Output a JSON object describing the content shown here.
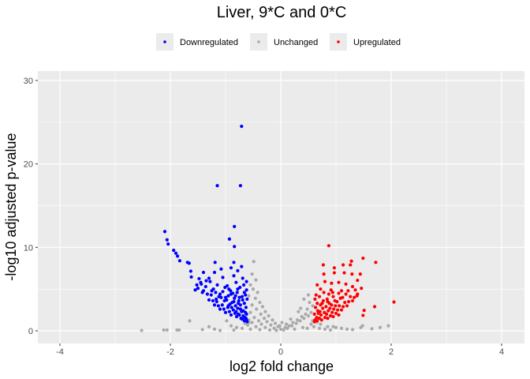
{
  "chart_data": {
    "type": "scatter",
    "title": "Liver, 9*C and 0*C",
    "xlabel": "log2 fold change",
    "ylabel": "-log10 adjusted p-value",
    "xlim": [
      -4.4,
      4.4
    ],
    "ylim": [
      -1.5,
      31
    ],
    "xticks": [
      -4,
      -2,
      0,
      2,
      4
    ],
    "yticks": [
      0,
      10,
      20,
      30
    ],
    "grid": true,
    "legend": {
      "placement": "top",
      "entries": [
        "Downregulated",
        "Unchanged",
        "Upregulated"
      ]
    },
    "series": [
      {
        "name": "Downregulated",
        "color": "#0000FF",
        "points": [
          [
            -0.71,
            24.5
          ],
          [
            -1.15,
            17.4
          ],
          [
            -0.73,
            17.4
          ],
          [
            -0.84,
            12.5
          ],
          [
            -2.1,
            11.9
          ],
          [
            -2.06,
            10.9
          ],
          [
            -2.04,
            10.4
          ],
          [
            -0.93,
            11.0
          ],
          [
            -0.84,
            10.1
          ],
          [
            -1.94,
            9.65
          ],
          [
            -1.9,
            9.3
          ],
          [
            -1.87,
            8.95
          ],
          [
            -1.83,
            8.4
          ],
          [
            -1.69,
            8.2
          ],
          [
            -1.66,
            8.1
          ],
          [
            -1.63,
            7.15
          ],
          [
            -1.62,
            6.45
          ],
          [
            -1.19,
            8.2
          ],
          [
            -0.85,
            8.2
          ],
          [
            -1.4,
            7.0
          ],
          [
            -1.48,
            6.25
          ],
          [
            -0.9,
            7.55
          ],
          [
            -0.71,
            7.7
          ],
          [
            -1.08,
            7.4
          ],
          [
            -0.78,
            7.2
          ],
          [
            -1.2,
            7.0
          ],
          [
            -1.3,
            6.3
          ],
          [
            -1.45,
            5.8
          ],
          [
            -1.52,
            5.5
          ],
          [
            -1.5,
            5.1
          ],
          [
            -1.42,
            4.6
          ],
          [
            -1.55,
            4.9
          ],
          [
            -0.62,
            1.3
          ],
          [
            -0.65,
            1.6
          ],
          [
            -0.62,
            2.0
          ],
          [
            -0.68,
            2.4
          ],
          [
            -0.63,
            2.8
          ],
          [
            -0.66,
            3.3
          ],
          [
            -0.61,
            3.8
          ],
          [
            -0.64,
            4.3
          ],
          [
            -0.62,
            4.9
          ],
          [
            -0.67,
            5.5
          ],
          [
            -0.72,
            1.5
          ],
          [
            -0.75,
            1.9
          ],
          [
            -0.71,
            2.3
          ],
          [
            -0.78,
            2.7
          ],
          [
            -0.73,
            3.1
          ],
          [
            -0.76,
            3.6
          ],
          [
            -0.7,
            4.1
          ],
          [
            -0.79,
            4.6
          ],
          [
            -0.74,
            5.2
          ],
          [
            -0.8,
            1.7
          ],
          [
            -0.83,
            2.1
          ],
          [
            -0.86,
            2.5
          ],
          [
            -0.82,
            3.0
          ],
          [
            -0.88,
            3.4
          ],
          [
            -0.84,
            3.9
          ],
          [
            -0.87,
            4.5
          ],
          [
            -0.81,
            5.8
          ],
          [
            -0.9,
            1.9
          ],
          [
            -0.93,
            2.3
          ],
          [
            -0.96,
            2.8
          ],
          [
            -0.92,
            3.2
          ],
          [
            -0.98,
            3.7
          ],
          [
            -0.95,
            4.2
          ],
          [
            -0.91,
            4.8
          ],
          [
            -0.97,
            5.4
          ],
          [
            -1.0,
            2.2
          ],
          [
            -1.03,
            2.6
          ],
          [
            -1.06,
            3.1
          ],
          [
            -1.02,
            3.6
          ],
          [
            -1.08,
            4.0
          ],
          [
            -1.05,
            4.7
          ],
          [
            -1.01,
            5.2
          ],
          [
            -1.1,
            2.6
          ],
          [
            -1.13,
            3.0
          ],
          [
            -1.16,
            3.5
          ],
          [
            -1.12,
            4.1
          ],
          [
            -1.18,
            4.6
          ],
          [
            -1.15,
            5.5
          ],
          [
            -1.2,
            3.1
          ],
          [
            -1.23,
            3.6
          ],
          [
            -1.26,
            4.3
          ],
          [
            -1.22,
            5.0
          ],
          [
            -1.28,
            5.9
          ],
          [
            -1.3,
            3.7
          ],
          [
            -1.33,
            4.4
          ],
          [
            -1.36,
            5.3
          ],
          [
            -1.4,
            4.8
          ],
          [
            -1.44,
            5.6
          ],
          [
            -1.35,
            6.0
          ],
          [
            -0.69,
            6.3
          ],
          [
            -0.85,
            6.6
          ],
          [
            -1.05,
            6.4
          ],
          [
            -0.61,
            1.1
          ],
          [
            -0.66,
            1.2
          ],
          [
            -0.7,
            1.4
          ],
          [
            -0.63,
            1.5
          ],
          [
            -0.68,
            1.8
          ],
          [
            -0.77,
            2.0
          ],
          [
            -0.64,
            2.2
          ],
          [
            -0.73,
            2.6
          ],
          [
            -0.81,
            2.3
          ],
          [
            -0.89,
            2.8
          ],
          [
            -0.95,
            3.0
          ],
          [
            -0.85,
            3.5
          ],
          [
            -0.77,
            3.3
          ],
          [
            -0.69,
            3.7
          ],
          [
            -0.75,
            4.0
          ],
          [
            -0.82,
            4.2
          ],
          [
            -0.66,
            4.6
          ],
          [
            -0.9,
            4.4
          ],
          [
            -1.0,
            4.0
          ],
          [
            -1.1,
            4.4
          ],
          [
            -0.94,
            5.0
          ],
          [
            -0.78,
            5.0
          ],
          [
            -0.62,
            5.9
          ],
          [
            -1.25,
            4.8
          ],
          [
            -1.17,
            3.8
          ]
        ]
      },
      {
        "name": "Unchanged",
        "color": "#A9A9A9",
        "points": [
          [
            -2.52,
            0.05
          ],
          [
            -2.12,
            0.1
          ],
          [
            -2.06,
            0.1
          ],
          [
            -1.88,
            0.1
          ],
          [
            -1.84,
            0.1
          ],
          [
            -1.65,
            1.2
          ],
          [
            -1.42,
            0.15
          ],
          [
            -1.3,
            0.5
          ],
          [
            -1.2,
            0.2
          ],
          [
            -1.1,
            0.05
          ],
          [
            -0.98,
            1.2
          ],
          [
            -0.9,
            0.6
          ],
          [
            -0.85,
            0.1
          ],
          [
            -0.8,
            0.4
          ],
          [
            -0.49,
            8.3
          ],
          [
            -0.52,
            6.8
          ],
          [
            -0.45,
            6.1
          ],
          [
            -0.55,
            5.5
          ],
          [
            -0.5,
            5.0
          ],
          [
            -0.42,
            4.6
          ],
          [
            -0.58,
            4.2
          ],
          [
            -0.46,
            3.9
          ],
          [
            -0.38,
            3.4
          ],
          [
            -0.52,
            3.1
          ],
          [
            -0.33,
            2.9
          ],
          [
            -0.44,
            2.6
          ],
          [
            -0.28,
            2.3
          ],
          [
            -0.55,
            2.2
          ],
          [
            -0.36,
            2.0
          ],
          [
            -0.22,
            1.8
          ],
          [
            -0.48,
            1.6
          ],
          [
            -0.3,
            1.5
          ],
          [
            -0.15,
            1.3
          ],
          [
            -0.58,
            1.3
          ],
          [
            -0.4,
            1.2
          ],
          [
            -0.25,
            1.1
          ],
          [
            -0.1,
            0.9
          ],
          [
            -0.52,
            1.0
          ],
          [
            -0.35,
            0.8
          ],
          [
            -0.18,
            0.7
          ],
          [
            -0.05,
            0.5
          ],
          [
            -0.6,
            0.7
          ],
          [
            -0.45,
            0.5
          ],
          [
            -0.28,
            0.4
          ],
          [
            -0.12,
            0.3
          ],
          [
            0.0,
            0.2
          ],
          [
            -0.7,
            0.3
          ],
          [
            -0.55,
            0.2
          ],
          [
            -0.38,
            0.15
          ],
          [
            -0.2,
            0.1
          ],
          [
            -0.08,
            0.05
          ],
          [
            -0.65,
            0.9
          ],
          [
            -0.58,
            1.0
          ],
          [
            0.05,
            0.1
          ],
          [
            0.12,
            0.3
          ],
          [
            0.2,
            0.6
          ],
          [
            0.28,
            0.9
          ],
          [
            0.35,
            1.2
          ],
          [
            0.42,
            1.5
          ],
          [
            0.5,
            1.8
          ],
          [
            0.55,
            2.2
          ],
          [
            0.48,
            2.6
          ],
          [
            0.58,
            3.0
          ],
          [
            0.52,
            3.4
          ],
          [
            0.45,
            2.0
          ],
          [
            0.38,
            1.7
          ],
          [
            0.3,
            1.3
          ],
          [
            0.22,
            1.0
          ],
          [
            0.15,
            0.6
          ],
          [
            0.4,
            0.4
          ],
          [
            0.55,
            0.8
          ],
          [
            0.58,
            1.2
          ],
          [
            0.25,
            0.2
          ],
          [
            0.48,
            0.3
          ],
          [
            0.6,
            0.5
          ],
          [
            0.7,
            0.3
          ],
          [
            0.8,
            0.2
          ],
          [
            0.9,
            0.1
          ],
          [
            1.0,
            0.4
          ],
          [
            1.1,
            0.3
          ],
          [
            1.2,
            0.2
          ],
          [
            0.95,
            0.5
          ],
          [
            0.85,
            0.5
          ],
          [
            1.3,
            0.15
          ],
          [
            1.45,
            0.4
          ],
          [
            1.48,
            0.6
          ],
          [
            1.65,
            0.25
          ],
          [
            1.8,
            0.4
          ],
          [
            1.95,
            0.6
          ],
          [
            0.72,
            0.8
          ],
          [
            0.65,
            1.0
          ],
          [
            0.42,
            3.8
          ],
          [
            0.5,
            4.3
          ],
          [
            0.36,
            2.7
          ],
          [
            0.32,
            2.3
          ],
          [
            0.1,
            0.8
          ],
          [
            0.18,
            1.4
          ],
          [
            0.08,
            0.4
          ],
          [
            -0.02,
            0.6
          ],
          [
            0.02,
            1.0
          ]
        ]
      },
      {
        "name": "Upregulated",
        "color": "#FF0000",
        "points": [
          [
            0.87,
            10.2
          ],
          [
            1.49,
            8.7
          ],
          [
            1.72,
            8.2
          ],
          [
            1.28,
            8.35
          ],
          [
            0.77,
            7.9
          ],
          [
            1.13,
            7.9
          ],
          [
            1.26,
            7.9
          ],
          [
            0.97,
            7.55
          ],
          [
            2.05,
            3.45
          ],
          [
            1.7,
            2.9
          ],
          [
            1.51,
            2.45
          ],
          [
            1.49,
            1.85
          ],
          [
            1.44,
            6.8
          ],
          [
            1.39,
            6.05
          ],
          [
            1.46,
            5.1
          ],
          [
            1.39,
            4.4
          ],
          [
            1.29,
            6.8
          ],
          [
            1.15,
            6.95
          ],
          [
            0.97,
            6.95
          ],
          [
            0.78,
            6.8
          ],
          [
            0.8,
            5.9
          ],
          [
            0.92,
            5.7
          ],
          [
            1.05,
            5.8
          ],
          [
            1.18,
            5.6
          ],
          [
            1.3,
            5.3
          ],
          [
            1.22,
            4.8
          ],
          [
            1.35,
            4.9
          ],
          [
            0.66,
            5.5
          ],
          [
            0.72,
            5.0
          ],
          [
            0.62,
            1.3
          ],
          [
            0.65,
            1.6
          ],
          [
            0.61,
            2.0
          ],
          [
            0.67,
            2.4
          ],
          [
            0.63,
            2.8
          ],
          [
            0.66,
            3.3
          ],
          [
            0.62,
            3.8
          ],
          [
            0.64,
            4.3
          ],
          [
            0.7,
            1.5
          ],
          [
            0.73,
            1.9
          ],
          [
            0.71,
            2.3
          ],
          [
            0.76,
            2.7
          ],
          [
            0.72,
            3.1
          ],
          [
            0.77,
            3.6
          ],
          [
            0.7,
            4.1
          ],
          [
            0.78,
            4.6
          ],
          [
            0.8,
            1.6
          ],
          [
            0.83,
            2.0
          ],
          [
            0.86,
            2.4
          ],
          [
            0.82,
            2.9
          ],
          [
            0.88,
            3.3
          ],
          [
            0.84,
            3.8
          ],
          [
            0.87,
            4.4
          ],
          [
            0.9,
            1.8
          ],
          [
            0.93,
            2.2
          ],
          [
            0.96,
            2.6
          ],
          [
            0.92,
            3.1
          ],
          [
            0.98,
            3.6
          ],
          [
            0.95,
            4.1
          ],
          [
            0.91,
            4.9
          ],
          [
            1.0,
            2.1
          ],
          [
            1.03,
            2.5
          ],
          [
            1.06,
            3.0
          ],
          [
            1.02,
            3.5
          ],
          [
            1.08,
            3.9
          ],
          [
            1.05,
            4.5
          ],
          [
            1.1,
            2.5
          ],
          [
            1.13,
            2.9
          ],
          [
            1.16,
            3.4
          ],
          [
            1.12,
            4.0
          ],
          [
            1.18,
            4.4
          ],
          [
            1.2,
            3.0
          ],
          [
            1.23,
            3.5
          ],
          [
            1.26,
            4.1
          ],
          [
            1.3,
            3.6
          ],
          [
            1.33,
            4.0
          ],
          [
            1.38,
            4.2
          ],
          [
            0.61,
            1.1
          ],
          [
            0.66,
            1.2
          ],
          [
            0.74,
            1.3
          ],
          [
            0.85,
            1.5
          ],
          [
            0.95,
            1.7
          ],
          [
            1.05,
            1.9
          ],
          [
            0.68,
            2.1
          ],
          [
            0.79,
            2.2
          ],
          [
            0.89,
            2.7
          ],
          [
            0.99,
            3.0
          ],
          [
            0.75,
            3.3
          ],
          [
            0.85,
            3.5
          ],
          [
            0.94,
            4.6
          ],
          [
            1.1,
            4.8
          ]
        ]
      }
    ]
  }
}
